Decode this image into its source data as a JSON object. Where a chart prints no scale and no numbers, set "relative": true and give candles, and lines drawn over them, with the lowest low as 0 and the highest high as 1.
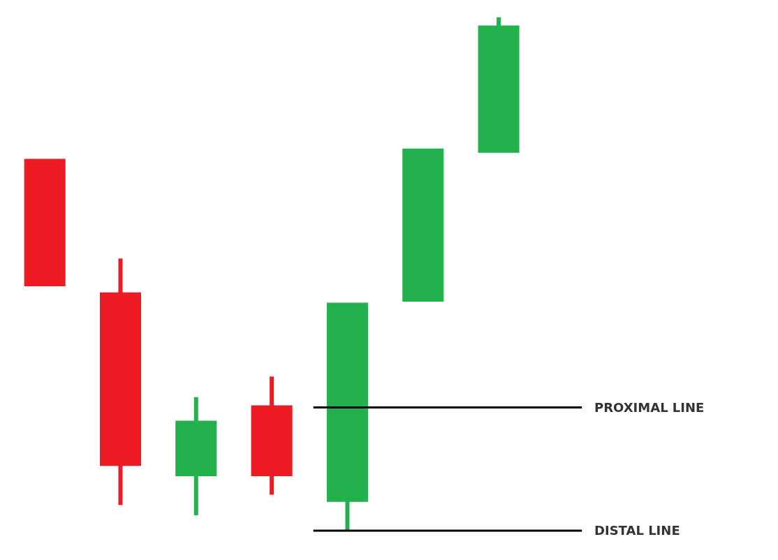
{
  "chart_data": {
    "type": "candlestick",
    "relative": true,
    "categories": [
      null,
      null,
      null,
      null,
      null,
      null,
      null
    ],
    "ohlc": [
      [
        0.72,
        0.72,
        0.48,
        0.48
      ],
      [
        0.46,
        0.53,
        0.05,
        0.13
      ],
      [
        0.11,
        0.26,
        0.03,
        0.21
      ],
      [
        0.24,
        0.3,
        0.07,
        0.11
      ],
      [
        0.06,
        0.44,
        0,
        0.44
      ],
      [
        0.45,
        0.74,
        0.45,
        0.74
      ],
      [
        0.74,
        1,
        0.74,
        0.98
      ]
    ],
    "colors": [
      "#ed1c24",
      "#ed1c24",
      "#22b14c",
      "#ed1c24",
      "#22b14c",
      "#22b14c",
      "#22b14c"
    ],
    "ref_lines": [
      {
        "axis": "y",
        "value": 0.24,
        "label": "PROXIMAL LINE",
        "color": "#000000"
      },
      {
        "axis": "y",
        "value": 0,
        "label": "DISTAL LINE",
        "color": "#000000"
      }
    ]
  }
}
